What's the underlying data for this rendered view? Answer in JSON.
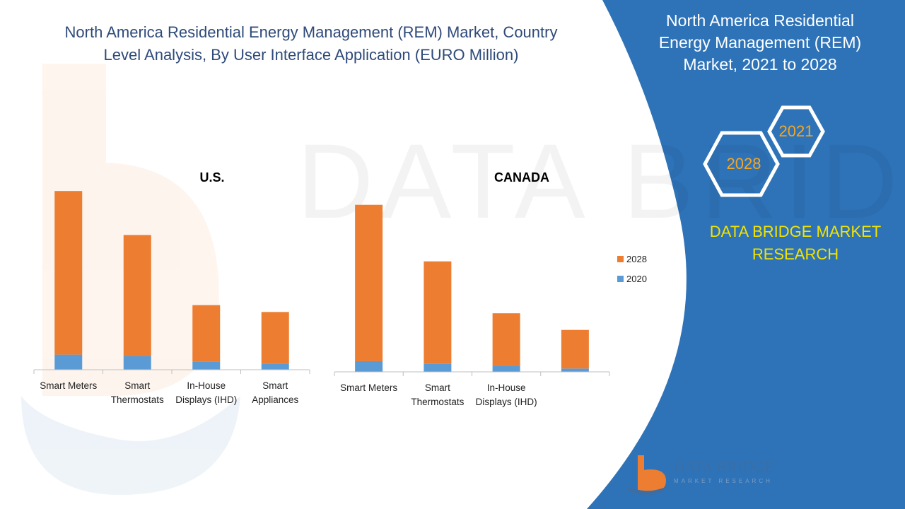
{
  "header": {
    "title_line1": "North America Residential Energy Management (REM) Market, Country",
    "title_line2": "Level Analysis, By User Interface Application (EURO Million)"
  },
  "panel": {
    "title_line1": "North America Residential",
    "title_line2": "Energy Management (REM)",
    "title_line3": "Market, 2021 to 2028",
    "hex_year_top": "2021",
    "hex_year_bottom": "2028",
    "brand_line1": "DATA BRIDGE MARKET",
    "brand_line2": "RESEARCH"
  },
  "logo": {
    "name": "DATA BRIDGE",
    "tagline": "MARKET RESEARCH"
  },
  "watermark": {
    "text": "DATA BRIDGE"
  },
  "colors": {
    "bar_2028": "#ed7d31",
    "bar_2020": "#5b9bd5",
    "panel_blue": "#2e73b8",
    "title": "#2e4a7a",
    "brand": "#f2e300"
  },
  "chart_data": [
    {
      "type": "bar",
      "stacked": true,
      "title": "U.S.",
      "categories": [
        "Smart Meters",
        "Smart Thermostats",
        "In-House Displays (IHD)",
        "Smart Appliances"
      ],
      "category_lines": [
        [
          "Smart Meters"
        ],
        [
          "Smart",
          "Thermostats"
        ],
        [
          "In-House",
          "Displays (IHD)"
        ],
        [
          "Smart",
          "Appliances"
        ]
      ],
      "series": [
        {
          "name": "2020",
          "values": [
            22,
            20,
            12,
            9
          ]
        },
        {
          "name": "2028",
          "values": [
            238,
            176,
            82,
            75
          ]
        }
      ],
      "ylim": [
        0,
        290
      ],
      "legend": "right"
    },
    {
      "type": "bar",
      "stacked": true,
      "title": "CANADA",
      "categories": [
        "Smart Meters",
        "Smart Thermostats",
        "In-House Displays (IHD)",
        ""
      ],
      "category_lines": [
        [
          "Smart Meters"
        ],
        [
          "Smart",
          "Thermostats"
        ],
        [
          "In-House",
          "Displays (IHD)"
        ],
        []
      ],
      "series": [
        {
          "name": "2020",
          "values": [
            16,
            12,
            9,
            5
          ]
        },
        {
          "name": "2028",
          "values": [
            235,
            154,
            79,
            58
          ]
        }
      ],
      "ylim": [
        0,
        290
      ],
      "legend": "right"
    }
  ],
  "legend": {
    "items": [
      "2028",
      "2020"
    ]
  }
}
